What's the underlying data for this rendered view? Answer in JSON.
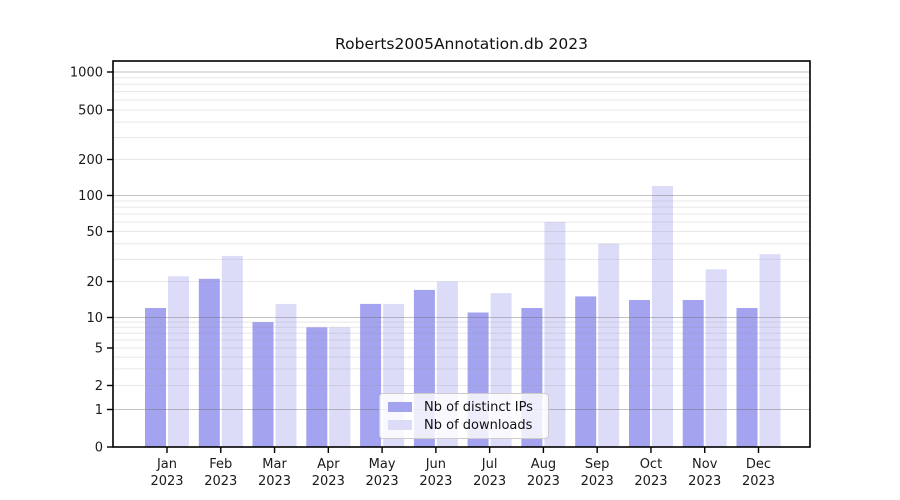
{
  "figure": {
    "title": "Roberts2005Annotation.db 2023"
  },
  "chart_data": {
    "type": "bar",
    "title": "Roberts2005Annotation.db 2023",
    "categories": [
      "Jan",
      "Feb",
      "Mar",
      "Apr",
      "May",
      "Jun",
      "Jul",
      "Aug",
      "Sep",
      "Oct",
      "Nov",
      "Dec"
    ],
    "year_label": "2023",
    "series": [
      {
        "name": "Nb of distinct IPs",
        "color": "#a3a3f0",
        "values": [
          12,
          21,
          9,
          8,
          13,
          17,
          11,
          12,
          15,
          14,
          14,
          12
        ]
      },
      {
        "name": "Nb of downloads",
        "color": "#dcdcf9",
        "values": [
          22,
          32,
          13,
          8,
          13,
          20,
          16,
          60,
          40,
          120,
          25,
          33
        ]
      }
    ],
    "y_axis": {
      "scale": "symlog",
      "ticks": [
        0,
        1,
        2,
        5,
        10,
        20,
        50,
        100,
        200,
        500,
        1000
      ],
      "major_gridlines": [
        1,
        10,
        100,
        1000
      ],
      "range": [
        0,
        1200
      ]
    },
    "x_axis": {
      "tick_labels_line1": [
        "Jan",
        "Feb",
        "Mar",
        "Apr",
        "May",
        "Jun",
        "Jul",
        "Aug",
        "Sep",
        "Oct",
        "Nov",
        "Dec"
      ],
      "tick_labels_line2": [
        "2023",
        "2023",
        "2023",
        "2023",
        "2023",
        "2023",
        "2023",
        "2023",
        "2023",
        "2023",
        "2023",
        "2023"
      ]
    },
    "legend": {
      "position": "lower center",
      "entries": [
        "Nb of distinct IPs",
        "Nb of downloads"
      ]
    },
    "grid": true,
    "colors": {
      "grid_major": "rgba(110,110,110,0.42)",
      "grid_minor": "rgba(150,150,150,0.22)",
      "axis": "#000000",
      "text": "#1a1a1a"
    }
  }
}
